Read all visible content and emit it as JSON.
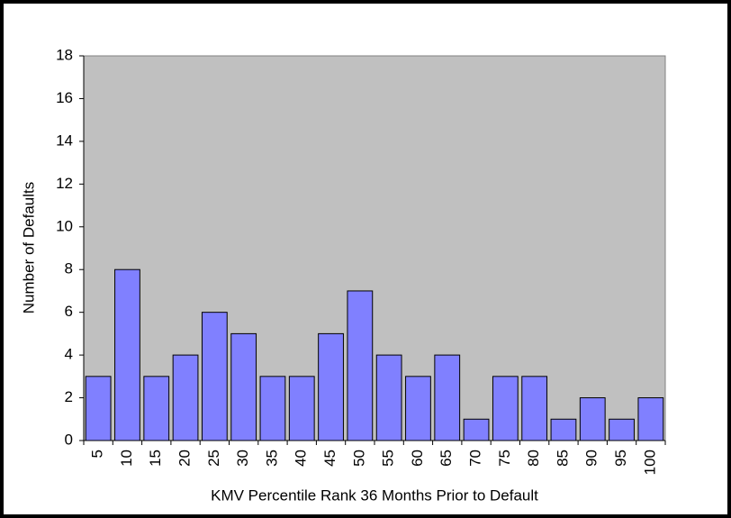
{
  "chart_data": {
    "type": "bar",
    "x_label": "KMV Percentile Rank 36 Months Prior to Default",
    "y_label": "Number of Defaults",
    "categories": [
      "5",
      "10",
      "15",
      "20",
      "25",
      "30",
      "35",
      "40",
      "45",
      "50",
      "55",
      "60",
      "65",
      "70",
      "75",
      "80",
      "85",
      "90",
      "95",
      "100"
    ],
    "values": [
      3,
      8,
      3,
      4,
      6,
      5,
      3,
      3,
      5,
      7,
      4,
      3,
      4,
      1,
      3,
      3,
      1,
      2,
      1,
      2
    ],
    "color": "#8080ff",
    "ylim": [
      0,
      18
    ],
    "yticks": [
      0,
      2,
      4,
      6,
      8,
      10,
      12,
      14,
      16,
      18
    ],
    "grid": false
  }
}
